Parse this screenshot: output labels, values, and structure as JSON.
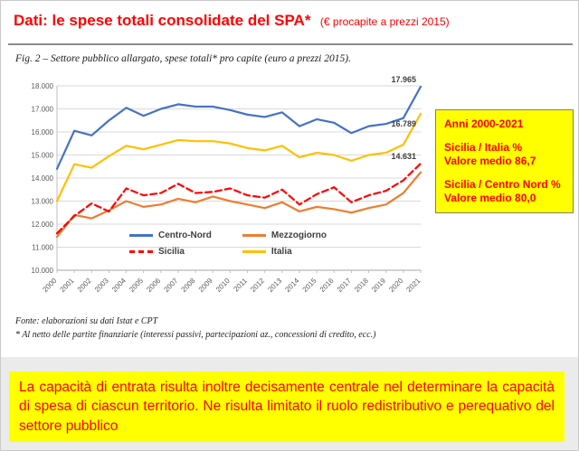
{
  "header": {
    "title": "Dati: le spese totali consolidate del SPA*",
    "subtitle": "(€ procapite a prezzi 2015)"
  },
  "figure": {
    "caption": "Fig. 2 – Settore pubblico allargato, spese totali* pro capite (euro a prezzi 2015)."
  },
  "callout": {
    "period": "Anni 2000-2021",
    "sicilia_italia": "Sicilia / Italia %\nValore medio 86,7",
    "sicilia_centro_nord": "Sicilia / Centro Nord %\nValore medio 80,0",
    "background": "#ffff00",
    "text_color": "#ff0000"
  },
  "notes": {
    "source": "Fonte: elaborazioni su dati Istat e CPT",
    "footnote": "* Al netto delle partite finanziarie (interessi passivi, partecipazioni az., concessioni di credito, ecc.)"
  },
  "banner": {
    "text": "La capacità di entrata risulta inoltre decisamente centrale nel determinare la capacità di spesa di ciascun territorio. Ne risulta limitato il ruolo redistributivo e perequativo del settore pubblico",
    "background": "#ffff00",
    "text_color": "#ff0000"
  },
  "colors": {
    "title_red": "#ff0000",
    "centro_nord": "#4472c4",
    "mezzogiorno": "#ed7d31",
    "sicilia": "#ff0000",
    "italia": "#ffc000",
    "grid": "#d9d9d9"
  },
  "chart_data": {
    "type": "line",
    "title": "Fig. 2 – Settore pubblico allargato, spese totali* pro capite (euro a prezzi 2015).",
    "xlabel": "",
    "ylabel": "",
    "grid": true,
    "legend_position": "inside-bottom",
    "ylim": [
      10000,
      18000
    ],
    "ytick_values": [
      10000,
      11000,
      12000,
      13000,
      14000,
      15000,
      16000,
      17000,
      18000
    ],
    "ytick_labels": [
      "10.000",
      "11.000",
      "12.000",
      "13.000",
      "14.000",
      "15.000",
      "16.000",
      "17.000",
      "18.000"
    ],
    "x": [
      "2000",
      "2001",
      "2002",
      "2003",
      "2004",
      "2005",
      "2006",
      "2007",
      "2008",
      "2009",
      "2010",
      "2011",
      "2012",
      "2013",
      "2014",
      "2015",
      "2016",
      "2017",
      "2018",
      "2019",
      "2020",
      "2021"
    ],
    "series": [
      {
        "name": "Centro-Nord",
        "color": "#4472c4",
        "dash": "solid",
        "end_label": "17.965",
        "values": [
          14400,
          16050,
          15850,
          16500,
          17050,
          16700,
          17000,
          17200,
          17100,
          17100,
          16950,
          16750,
          16650,
          16850,
          16250,
          16550,
          16400,
          15950,
          16250,
          16350,
          16600,
          17965
        ]
      },
      {
        "name": "Mezzogiorno",
        "color": "#ed7d31",
        "dash": "solid",
        "end_label": "",
        "values": [
          11450,
          12400,
          12250,
          12600,
          13000,
          12750,
          12850,
          13100,
          12950,
          13200,
          13000,
          12850,
          12700,
          12950,
          12550,
          12750,
          12650,
          12500,
          12700,
          12850,
          13350,
          14250
        ]
      },
      {
        "name": "Sicilia",
        "color": "#ff0000",
        "dash": "dashed",
        "end_label": "14.631",
        "values": [
          11600,
          12350,
          12900,
          12550,
          13550,
          13250,
          13350,
          13750,
          13350,
          13400,
          13550,
          13250,
          13150,
          13500,
          12850,
          13300,
          13600,
          12950,
          13250,
          13450,
          13900,
          14631
        ]
      },
      {
        "name": "Italia",
        "color": "#ffc000",
        "dash": "solid",
        "end_label": "16.789",
        "values": [
          13000,
          14600,
          14450,
          14950,
          15400,
          15250,
          15450,
          15650,
          15600,
          15600,
          15500,
          15300,
          15200,
          15400,
          14900,
          15100,
          15000,
          14750,
          15000,
          15100,
          15450,
          16789
        ]
      }
    ]
  }
}
